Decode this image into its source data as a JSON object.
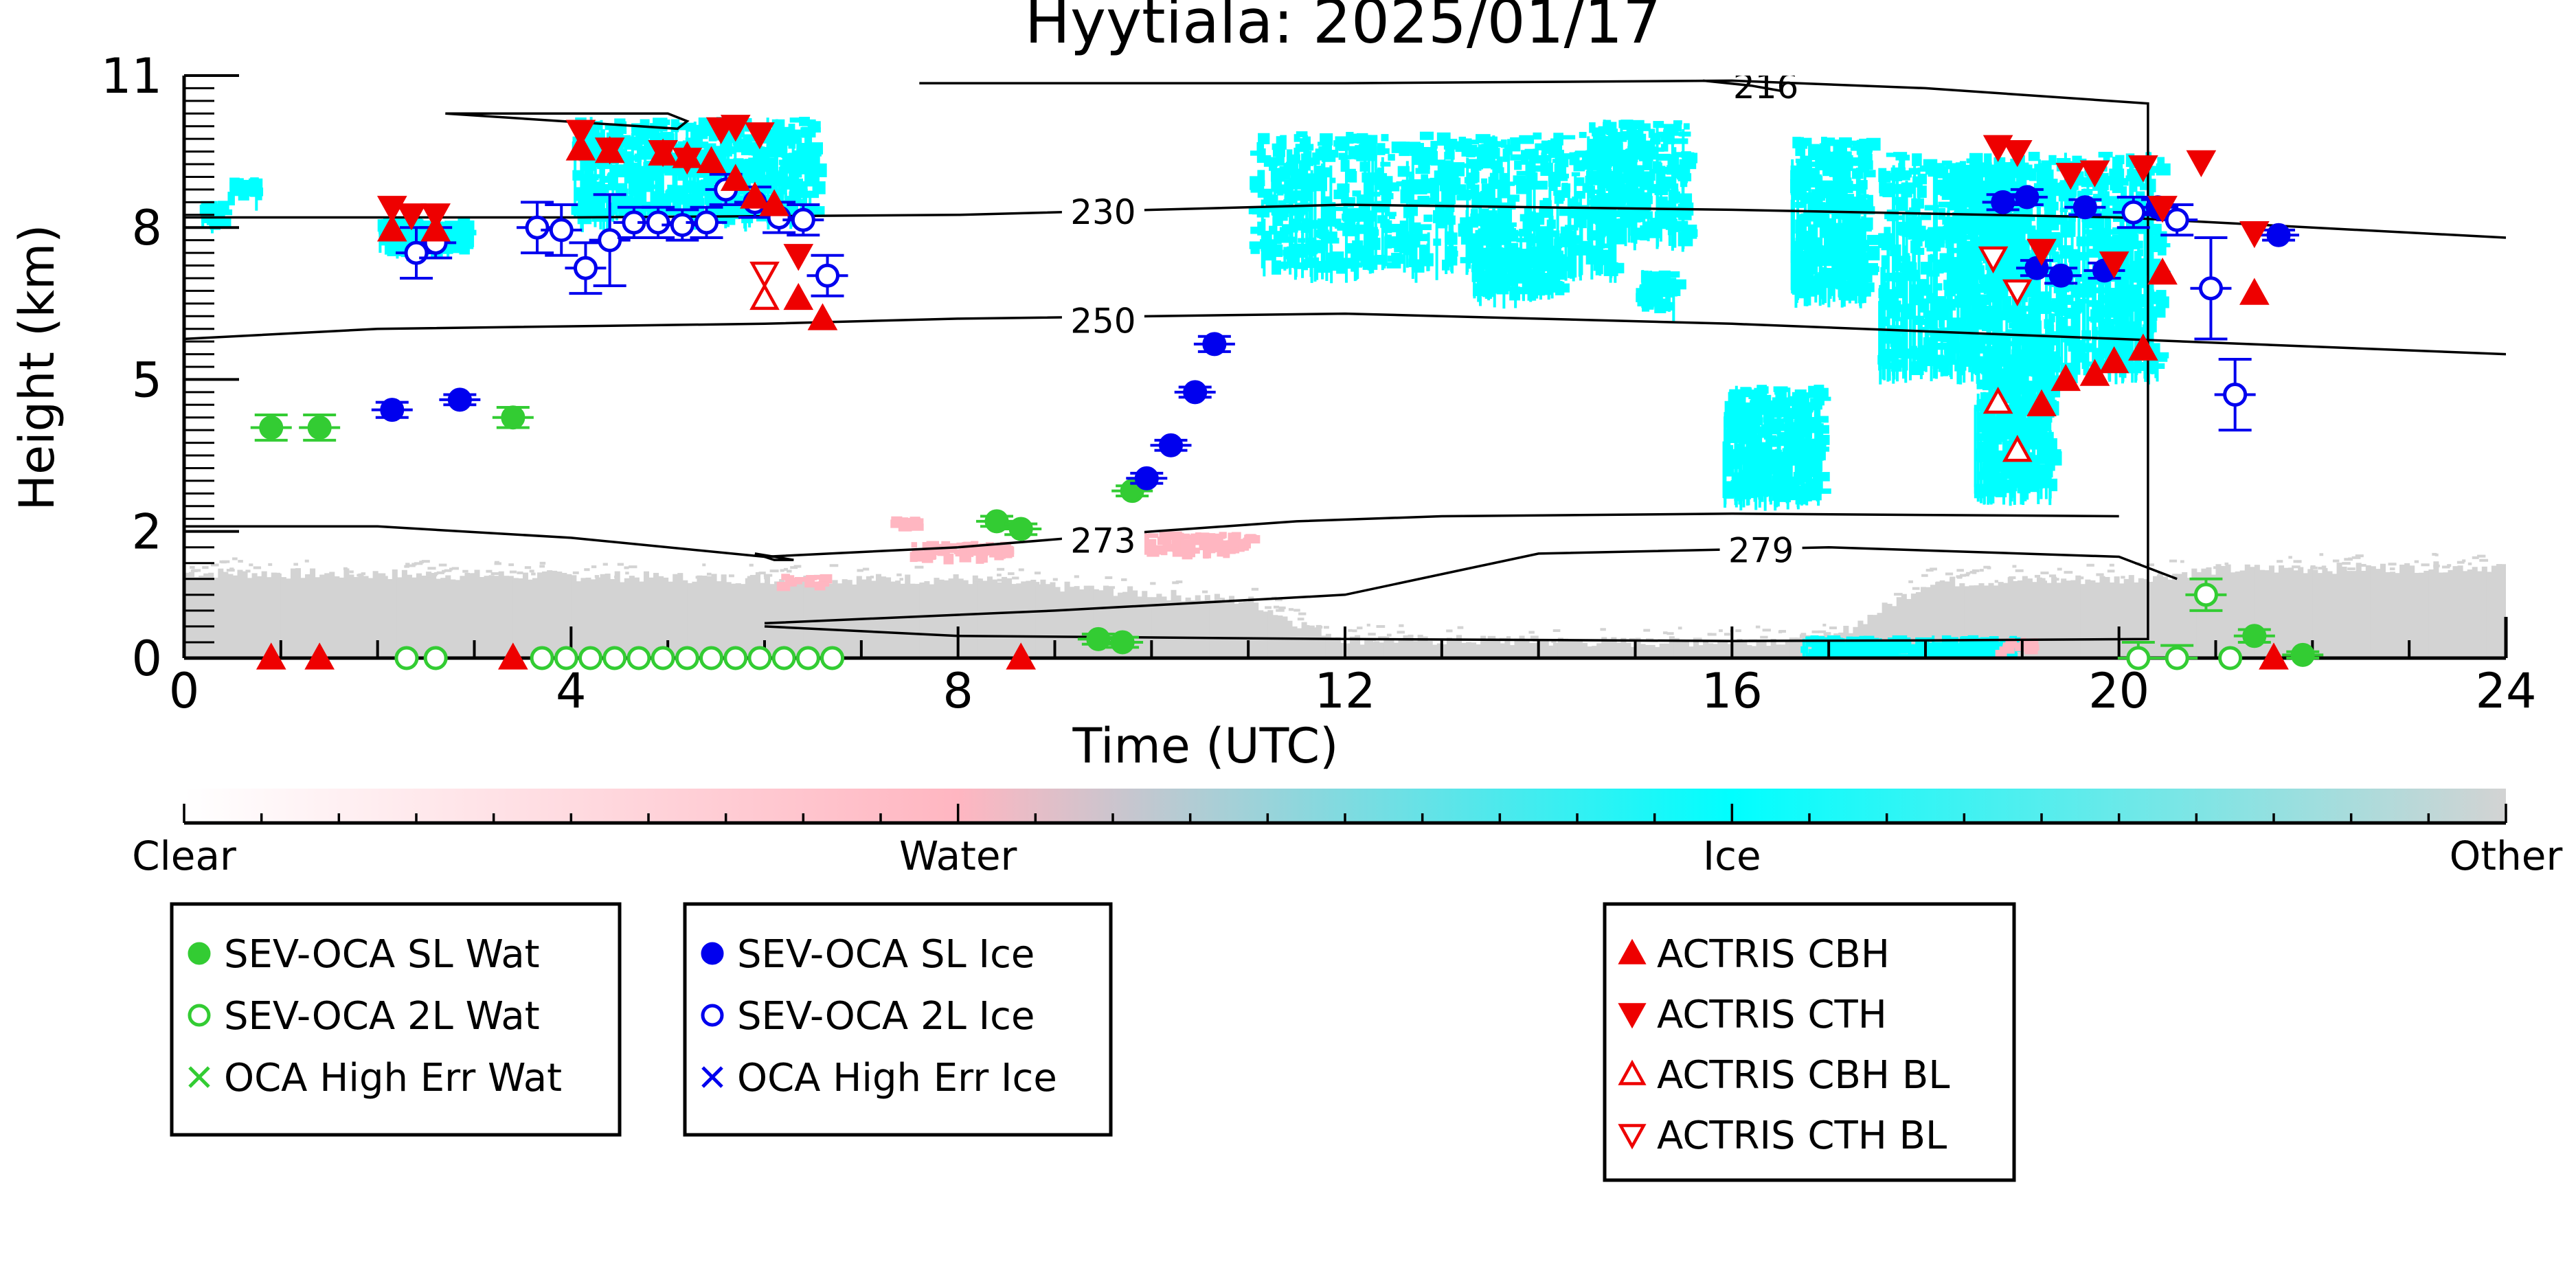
{
  "chart_data": {
    "type": "scatter",
    "title": "Hyytiala: 2025/01/17",
    "xlabel": "Time (UTC)",
    "ylabel": "Height (km)",
    "xlim": [
      0,
      24
    ],
    "ylim": [
      0,
      11
    ],
    "x_ticks": [
      0,
      4,
      8,
      12,
      16,
      20,
      24
    ],
    "y_ticks": [
      0,
      2,
      5,
      8,
      11
    ],
    "y_tick_labels": [
      "0",
      "2",
      "5",
      "8",
      "11"
    ],
    "y_scale": "nonlinear",
    "y_axis_map": [
      [
        0,
        0
      ],
      [
        2,
        2
      ],
      [
        5,
        4.4
      ],
      [
        8,
        6.8
      ],
      [
        11,
        9.2
      ]
    ],
    "colorbar": {
      "labels": [
        "Clear",
        "Water",
        "Ice",
        "Other"
      ],
      "colors": [
        "#ffffff",
        "#ffb6c1",
        "#00ffff",
        "#d3d3d3"
      ]
    },
    "contours": [
      {
        "label": "230",
        "x": [
          0,
          4,
          8,
          12,
          16,
          20,
          24
        ],
        "y": [
          8.2,
          8.2,
          8.25,
          8.45,
          8.35,
          8.2,
          7.8
        ]
      },
      {
        "label": "250",
        "x": [
          0,
          2,
          6,
          8,
          12,
          16,
          20,
          24
        ],
        "y": [
          5.8,
          6.0,
          6.1,
          6.2,
          6.3,
          6.1,
          5.8,
          5.5
        ]
      },
      {
        "label": "273",
        "x": [
          0,
          2,
          4,
          6,
          8,
          10,
          11.5,
          13,
          16,
          20
        ],
        "y": [
          2.1,
          2.1,
          1.9,
          1.6,
          1.75,
          2.0,
          2.2,
          2.3,
          2.35,
          2.3
        ]
      },
      {
        "label": "279",
        "x": [
          6,
          9,
          12,
          14,
          17,
          20,
          20.6
        ],
        "y": [
          0.55,
          0.75,
          1.0,
          1.65,
          1.75,
          1.6,
          1.25
        ]
      },
      {
        "label": "",
        "x": [
          2.7,
          5.0,
          5.2,
          5.1,
          2.7
        ],
        "y": [
          10.25,
          10.25,
          10.1,
          9.95,
          10.25
        ]
      },
      {
        "label": "",
        "x": [
          5.9,
          6.1,
          6.3,
          6.1,
          5.9
        ],
        "y": [
          1.65,
          1.6,
          1.55,
          1.55,
          1.65
        ]
      },
      {
        "label": "",
        "x": [
          7.6,
          12,
          16,
          18,
          20.3,
          20.3,
          18,
          16,
          12,
          8,
          6
        ],
        "y": [
          10.85,
          10.85,
          10.9,
          10.75,
          10.45,
          0.3,
          0.28,
          0.27,
          0.3,
          0.35,
          0.5
        ]
      },
      {
        "label": "216",
        "x": [
          15.7,
          16.2,
          16.5
        ],
        "y": [
          10.9,
          10.8,
          10.7
        ]
      }
    ],
    "series": [
      {
        "name": "SEV-OCA SL Wat",
        "marker": "circle",
        "filled": true,
        "color": "#33cc33",
        "x": [
          0.9,
          1.4,
          3.4,
          8.4,
          8.65,
          9.8,
          9.45,
          9.7,
          21.4,
          21.9
        ],
        "y": [
          4.05,
          4.05,
          4.25,
          2.2,
          2.05,
          2.8,
          0.3,
          0.25,
          0.35,
          0.05
        ],
        "err": [
          0.25,
          0.25,
          0.2,
          0.1,
          0.1,
          0.1,
          0.08,
          0.08,
          0.1,
          0.05
        ]
      },
      {
        "name": "SEV-OCA 2L Wat",
        "marker": "circle",
        "filled": false,
        "color": "#33cc33",
        "x": [
          2.3,
          2.6,
          3.7,
          3.95,
          4.2,
          4.45,
          4.7,
          4.95,
          5.2,
          5.45,
          5.7,
          5.95,
          6.2,
          6.45,
          6.7,
          20.2,
          20.6,
          20.9,
          21.15
        ],
        "y": [
          0.0,
          0.0,
          0.0,
          0.0,
          0.0,
          0.0,
          0.0,
          0.0,
          0.0,
          0.0,
          0.0,
          0.0,
          0.0,
          0.0,
          0.0,
          0.0,
          0.0,
          1.0,
          0.0
        ],
        "err": [
          0,
          0,
          0,
          0,
          0,
          0,
          0,
          0,
          0,
          0,
          0,
          0,
          0,
          0,
          0,
          0.25,
          0.2,
          0.25,
          0
        ]
      },
      {
        "name": "OCA High Err Wat",
        "marker": "x",
        "filled": false,
        "color": "#33cc33",
        "x": [],
        "y": [],
        "err": []
      },
      {
        "name": "SEV-OCA SL Ice",
        "marker": "circle",
        "filled": true,
        "color": "#0000ee",
        "x": [
          2.15,
          2.85,
          9.95,
          10.2,
          10.45,
          10.65,
          18.8,
          19.05,
          19.15,
          19.4,
          19.65,
          19.85,
          20.4,
          21.65
        ],
        "y": [
          4.4,
          4.6,
          3.05,
          3.7,
          4.75,
          5.7,
          8.5,
          8.6,
          7.2,
          7.05,
          8.4,
          7.15,
          8.4,
          7.85
        ],
        "err": [
          0.15,
          0.1,
          0.1,
          0.1,
          0.1,
          0.15,
          0.15,
          0.15,
          0.15,
          0.15,
          0.15,
          0.15,
          0.15,
          0.1
        ]
      },
      {
        "name": "SEV-OCA 2L Ice",
        "marker": "circle",
        "filled": false,
        "color": "#0000ee",
        "x": [
          2.4,
          2.6,
          3.65,
          3.9,
          4.15,
          4.4,
          4.65,
          4.9,
          5.15,
          5.4,
          5.6,
          5.9,
          6.15,
          6.4,
          6.65,
          20.15,
          20.6,
          20.95,
          21.2
        ],
        "y": [
          7.5,
          7.7,
          8.0,
          7.95,
          7.2,
          7.75,
          8.1,
          8.1,
          8.05,
          8.1,
          8.75,
          8.5,
          8.2,
          8.15,
          7.05,
          8.3,
          8.15,
          6.8,
          4.7
        ],
        "err": [
          0.5,
          0.3,
          0.5,
          0.5,
          0.5,
          0.9,
          0.3,
          0.3,
          0.3,
          0.3,
          0.3,
          0.3,
          0.3,
          0.3,
          0.4,
          0.3,
          0.3,
          1.0,
          0.7
        ]
      },
      {
        "name": "OCA High Err Ice",
        "marker": "x",
        "filled": false,
        "color": "#0000ee",
        "x": [],
        "y": [],
        "err": []
      },
      {
        "name": "ACTRIS CBH",
        "marker": "triangle-up",
        "filled": true,
        "color": "#ee0000",
        "x": [
          0.9,
          1.4,
          2.15,
          2.6,
          3.4,
          4.1,
          4.4,
          4.95,
          5.2,
          5.45,
          5.7,
          5.9,
          6.1,
          6.35,
          6.6,
          8.65,
          19.2,
          19.45,
          19.75,
          19.95,
          20.25,
          20.45,
          21.4,
          21.6
        ],
        "y": [
          0.0,
          0.0,
          7.95,
          7.95,
          0.0,
          9.55,
          9.5,
          9.45,
          9.4,
          9.3,
          8.95,
          8.6,
          8.45,
          6.6,
          6.2,
          0.0,
          4.5,
          5.0,
          5.1,
          5.35,
          5.6,
          7.1,
          6.7,
          0.0
        ],
        "err": []
      },
      {
        "name": "ACTRIS CTH",
        "marker": "triangle-down",
        "filled": true,
        "color": "#ee0000",
        "x": [
          2.15,
          2.35,
          2.6,
          4.1,
          4.4,
          4.95,
          5.2,
          5.55,
          5.7,
          5.95,
          6.35,
          18.75,
          18.95,
          19.2,
          19.5,
          19.75,
          19.95,
          20.25,
          20.45,
          20.85,
          21.4
        ],
        "y": [
          8.4,
          8.25,
          8.25,
          9.9,
          9.55,
          9.5,
          9.35,
          9.95,
          10.0,
          9.85,
          7.45,
          9.6,
          9.5,
          7.55,
          9.05,
          9.1,
          7.3,
          9.2,
          8.4,
          9.3,
          7.9
        ],
        "err": []
      },
      {
        "name": "ACTRIS CBH BL",
        "marker": "triangle-up",
        "filled": false,
        "color": "#ee0000",
        "x": [
          6.0,
          18.75,
          18.95
        ],
        "y": [
          6.6,
          4.55,
          3.6
        ],
        "err": []
      },
      {
        "name": "ACTRIS CTH BL",
        "marker": "triangle-down",
        "filled": false,
        "color": "#ee0000",
        "x": [
          6.0,
          18.7,
          18.95
        ],
        "y": [
          7.1,
          7.4,
          6.75
        ],
        "err": []
      }
    ],
    "legend_placement": "bottom"
  }
}
